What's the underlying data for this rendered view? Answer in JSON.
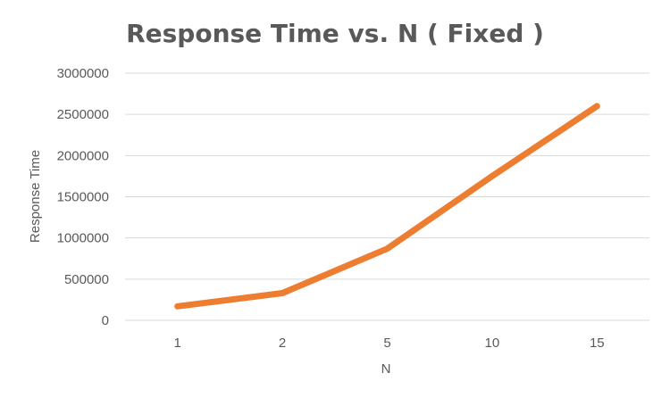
{
  "chart_data": {
    "type": "line",
    "title": "Response Time vs. N ( Fixed )",
    "xlabel": "N",
    "ylabel": "Response Time",
    "categories": [
      "1",
      "2",
      "5",
      "10",
      "15"
    ],
    "series": [
      {
        "values": [
          170000,
          330000,
          870000,
          1750000,
          2600000
        ],
        "color": "#ED7D31"
      }
    ],
    "ylim": [
      0,
      3000000
    ],
    "yticks": [
      "0",
      "500000",
      "1000000",
      "1500000",
      "2000000",
      "2500000",
      "3000000"
    ],
    "grid": true,
    "legend": "none"
  }
}
